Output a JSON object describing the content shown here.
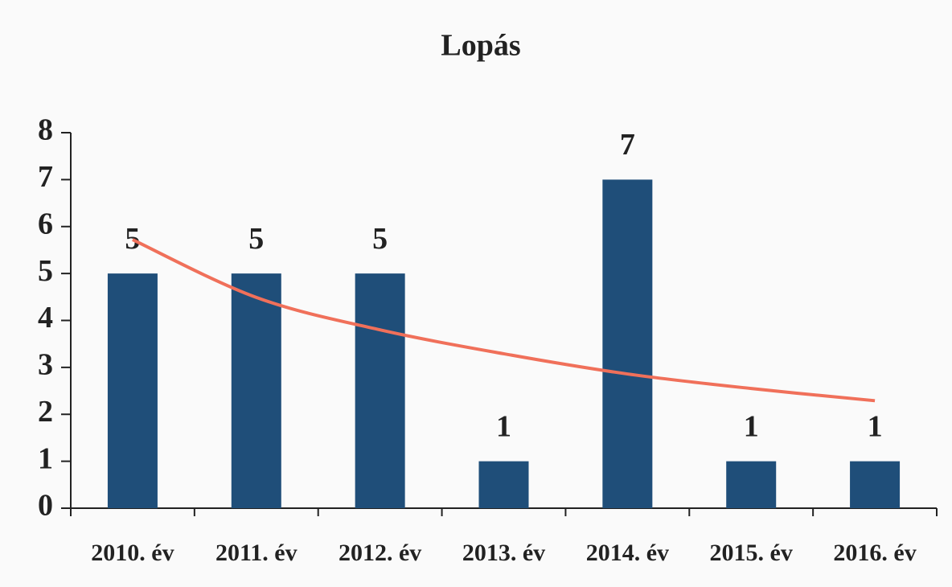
{
  "chart_data": {
    "type": "bar",
    "title": "Lopás",
    "categories": [
      "2010. év",
      "2011. év",
      "2012. év",
      "2013. év",
      "2014. év",
      "2015. év",
      "2016. év"
    ],
    "series": [
      {
        "type": "bar",
        "color": "#1f4e79",
        "values": [
          5,
          5,
          5,
          1,
          7,
          1,
          1
        ]
      },
      {
        "type": "line",
        "color": "#f0705a",
        "values": [
          5.72,
          4.49,
          3.8,
          3.29,
          2.86,
          2.55,
          2.29
        ]
      }
    ],
    "ylim": [
      0,
      8
    ],
    "yticks": [
      0,
      1,
      2,
      3,
      4,
      5,
      6,
      7,
      8
    ],
    "grid": false
  }
}
